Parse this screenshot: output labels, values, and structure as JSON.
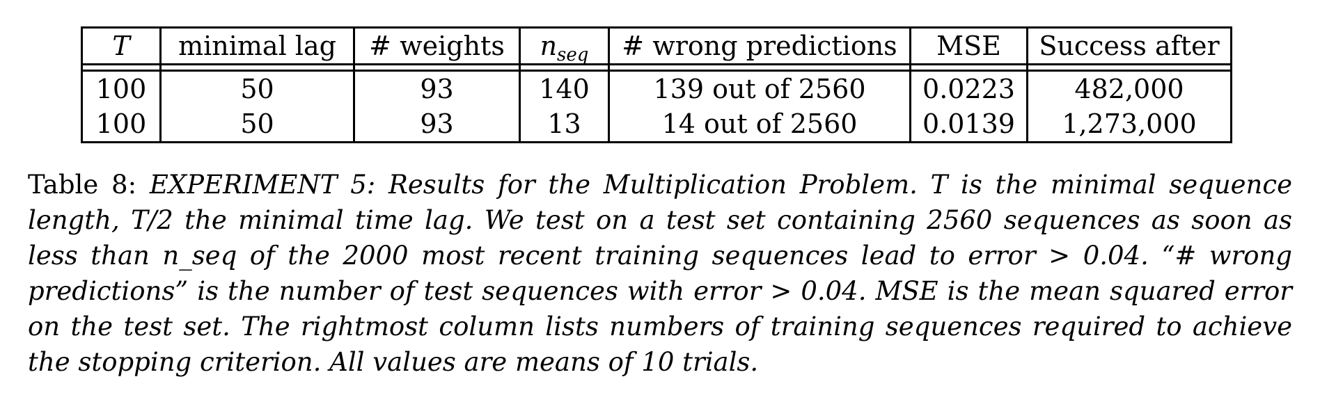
{
  "table": {
    "headers": [
      "T",
      "minimal lag",
      "# weights",
      "n",
      "# wrong predictions",
      "MSE",
      "Success after"
    ],
    "header_sub": "seq",
    "rows": [
      [
        "100",
        "50",
        "93",
        "140",
        "139 out of 2560",
        "0.0223",
        "482,000"
      ],
      [
        "100",
        "50",
        "93",
        "13",
        "14 out of 2560",
        "0.0139",
        "1,273,000"
      ]
    ]
  },
  "caption": {
    "label": "Table 8:",
    "text": "EXPERIMENT 5: Results for the Multiplication Problem. T is the minimal sequence length, T/2 the minimal time lag. We test on a test set containing 2560 sequences as soon as less than n_seq of the 2000 most recent training sequences lead to error > 0.04. “# wrong predictions” is the number of test sequences with error > 0.04. MSE is the mean squared error on the test set. The rightmost column lists numbers of training sequences required to achieve the stopping criterion. All values are means of 10 trials."
  }
}
